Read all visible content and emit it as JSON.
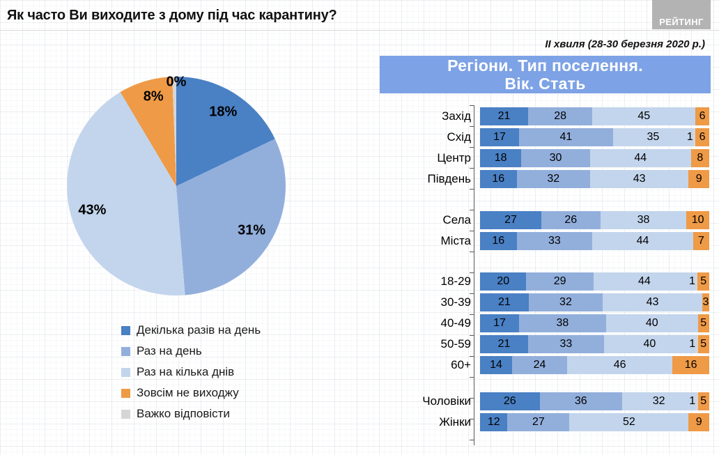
{
  "page": {
    "title": "Як часто Ви виходите з дому під час карантину?",
    "subtitle": "ІІ хвиля (28-30 березня 2020 р.)",
    "logo_text": "РЕЙТИНГ",
    "panel_title_line1": "Регіони. Тип поселення.",
    "panel_title_line2": "Вік. Стать"
  },
  "colors": {
    "series": [
      "#4a80c4",
      "#92afdc",
      "#c3d5ec",
      "#ef9a46",
      "#d6d6d6"
    ],
    "panel_header_bg": "#7da2e5",
    "logo_bg": "#b3b3b3",
    "axis": "#595959"
  },
  "chart_data": [
    {
      "type": "pie",
      "title": "Як часто Ви виходите з дому під час карантину?",
      "legend_position": "bottom-left",
      "series_labels": [
        "Декілька разів на день",
        "Раз на день",
        "Раз на кілька днів",
        "Зовсім не виходжу",
        "Важко відповісти"
      ],
      "values": [
        18,
        31,
        43,
        8,
        0
      ],
      "data_labels": [
        "18%",
        "31%",
        "43%",
        "8%",
        "0%"
      ]
    },
    {
      "type": "stacked-bar-100",
      "title": "Регіони. Тип поселення. Вік. Стать",
      "series_labels": [
        "Декілька разів на день",
        "Раз на день",
        "Раз на кілька днів",
        "Зовсім не виходжу",
        "Важко відповісти"
      ],
      "xlim": [
        0,
        100
      ],
      "groups": [
        {
          "name": "regions",
          "rows": [
            {
              "label": "Захід",
              "segments": [
                {
                  "value": 21,
                  "series": 0
                },
                {
                  "value": 28,
                  "series": 1
                },
                {
                  "value": 45,
                  "series": 2
                },
                {
                  "value": 6,
                  "series": 3
                }
              ]
            },
            {
              "label": "Схід",
              "segments": [
                {
                  "value": 17,
                  "series": 0
                },
                {
                  "value": 41,
                  "series": 1
                },
                {
                  "value": 35,
                  "series": 2
                },
                {
                  "value": 1,
                  "series": 4
                },
                {
                  "value": 6,
                  "series": 3
                }
              ]
            },
            {
              "label": "Центр",
              "segments": [
                {
                  "value": 18,
                  "series": 0
                },
                {
                  "value": 30,
                  "series": 1
                },
                {
                  "value": 44,
                  "series": 2
                },
                {
                  "value": 8,
                  "series": 3
                }
              ]
            },
            {
              "label": "Південь",
              "segments": [
                {
                  "value": 16,
                  "series": 0
                },
                {
                  "value": 32,
                  "series": 1
                },
                {
                  "value": 43,
                  "series": 2
                },
                {
                  "value": 9,
                  "series": 3
                }
              ]
            }
          ]
        },
        {
          "name": "settlement",
          "rows": [
            {
              "label": "Села",
              "segments": [
                {
                  "value": 27,
                  "series": 0
                },
                {
                  "value": 26,
                  "series": 1
                },
                {
                  "value": 38,
                  "series": 2
                },
                {
                  "value": 10,
                  "series": 3
                }
              ]
            },
            {
              "label": "Міста",
              "segments": [
                {
                  "value": 16,
                  "series": 0
                },
                {
                  "value": 33,
                  "series": 1
                },
                {
                  "value": 44,
                  "series": 2
                },
                {
                  "value": 7,
                  "series": 3
                }
              ]
            }
          ]
        },
        {
          "name": "age",
          "rows": [
            {
              "label": "18-29",
              "segments": [
                {
                  "value": 20,
                  "series": 0
                },
                {
                  "value": 29,
                  "series": 1
                },
                {
                  "value": 44,
                  "series": 2
                },
                {
                  "value": 1,
                  "series": 4
                },
                {
                  "value": 5,
                  "series": 3
                }
              ]
            },
            {
              "label": "30-39",
              "segments": [
                {
                  "value": 21,
                  "series": 0
                },
                {
                  "value": 32,
                  "series": 1
                },
                {
                  "value": 43,
                  "series": 2
                },
                {
                  "value": 3,
                  "series": 3
                }
              ]
            },
            {
              "label": "40-49",
              "segments": [
                {
                  "value": 17,
                  "series": 0
                },
                {
                  "value": 38,
                  "series": 1
                },
                {
                  "value": 40,
                  "series": 2
                },
                {
                  "value": 5,
                  "series": 3
                }
              ]
            },
            {
              "label": "50-59",
              "segments": [
                {
                  "value": 21,
                  "series": 0
                },
                {
                  "value": 33,
                  "series": 1
                },
                {
                  "value": 40,
                  "series": 2
                },
                {
                  "value": 1,
                  "series": 4
                },
                {
                  "value": 5,
                  "series": 3
                }
              ]
            },
            {
              "label": "60+",
              "segments": [
                {
                  "value": 14,
                  "series": 0
                },
                {
                  "value": 24,
                  "series": 1
                },
                {
                  "value": 46,
                  "series": 2
                },
                {
                  "value": 16,
                  "series": 3
                }
              ]
            }
          ]
        },
        {
          "name": "gender",
          "rows": [
            {
              "label": "Чоловіки",
              "segments": [
                {
                  "value": 26,
                  "series": 0
                },
                {
                  "value": 36,
                  "series": 1
                },
                {
                  "value": 32,
                  "series": 2
                },
                {
                  "value": 1,
                  "series": 4
                },
                {
                  "value": 5,
                  "series": 3
                }
              ]
            },
            {
              "label": "Жінки",
              "segments": [
                {
                  "value": 12,
                  "series": 0
                },
                {
                  "value": 27,
                  "series": 1
                },
                {
                  "value": 52,
                  "series": 2
                },
                {
                  "value": 9,
                  "series": 3
                }
              ]
            }
          ]
        }
      ]
    }
  ]
}
